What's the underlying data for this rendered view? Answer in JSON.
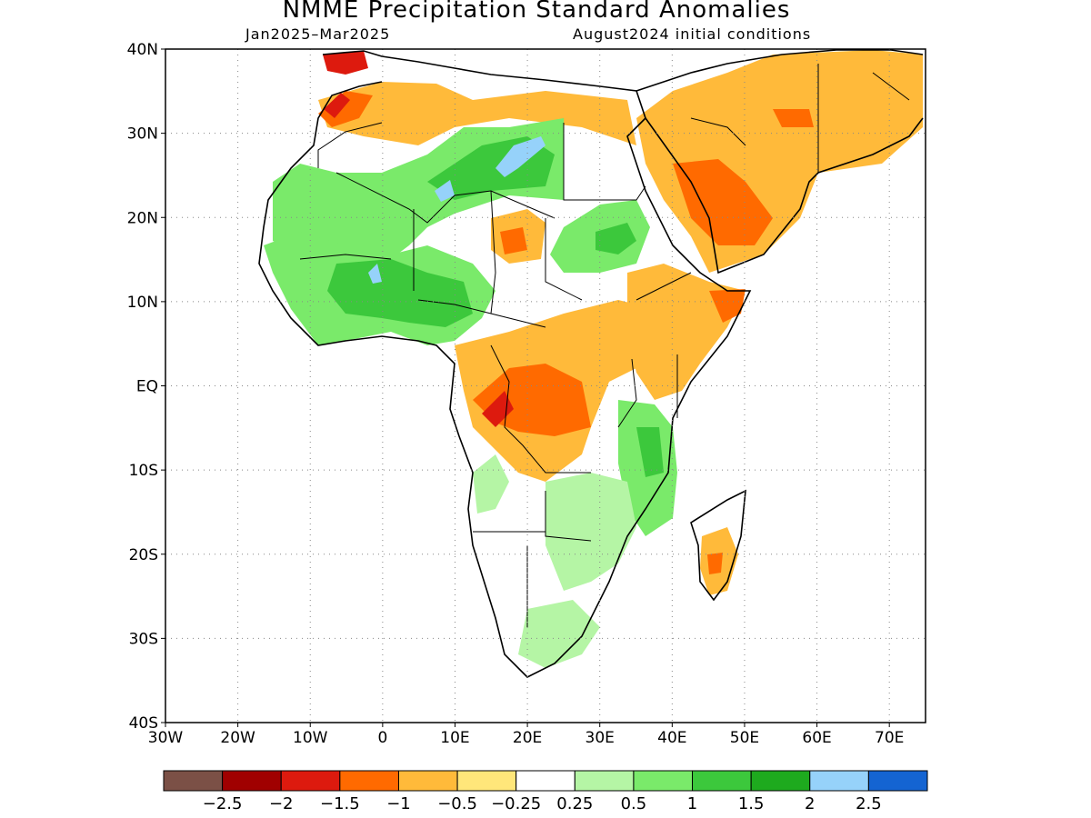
{
  "title": "NMME Precipitation Standard Anomalies",
  "subtitle_left": "Jan2025–Mar2025",
  "subtitle_right": "August2024 initial conditions",
  "lat_labels": [
    "40N",
    "30N",
    "20N",
    "10N",
    "EQ",
    "10S",
    "20S",
    "30S",
    "40S"
  ],
  "lat_values": [
    40,
    30,
    20,
    10,
    0,
    -10,
    -20,
    -30,
    -40
  ],
  "lon_labels": [
    "30W",
    "20W",
    "10W",
    "0",
    "10E",
    "20E",
    "30E",
    "40E",
    "50E",
    "60E",
    "70E"
  ],
  "lon_values": [
    -30,
    -20,
    -10,
    0,
    10,
    20,
    30,
    40,
    50,
    60,
    70
  ],
  "colorbar": {
    "colors": [
      "#7b5046",
      "#a00000",
      "#dd1a0e",
      "#ff6a00",
      "#ffba3a",
      "#ffe67a",
      "#ffffff",
      "#b5f5a5",
      "#7aea6a",
      "#3cc83c",
      "#1eaa1e",
      "#96d2fa",
      "#1464d2"
    ],
    "labels": [
      "−2.5",
      "−2",
      "−1.5",
      "−1",
      "−0.5",
      "−0.25",
      "0.25",
      "0.5",
      "1",
      "1.5",
      "2",
      "2.5"
    ]
  },
  "regions": [
    {
      "name": "morocco-dry-strong",
      "color": "#dd1a0e"
    },
    {
      "name": "north-africa-dry",
      "color": "#ffba3a"
    },
    {
      "name": "sahara-wet",
      "color": "#7aea6a"
    },
    {
      "name": "sahel-wet",
      "color": "#3cc83c"
    },
    {
      "name": "sahara-very-wet",
      "color": "#96d2fa"
    },
    {
      "name": "central-africa-dry",
      "color": "#ffba3a"
    },
    {
      "name": "congo-dry-strong",
      "color": "#ff6a00"
    },
    {
      "name": "horn-of-africa-dry",
      "color": "#ffba3a"
    },
    {
      "name": "arabia-dry",
      "color": "#ffba3a"
    },
    {
      "name": "east-africa-wet",
      "color": "#7aea6a"
    },
    {
      "name": "southern-africa-wet",
      "color": "#b5f5a5"
    },
    {
      "name": "madagascar-dry",
      "color": "#ffba3a"
    }
  ]
}
